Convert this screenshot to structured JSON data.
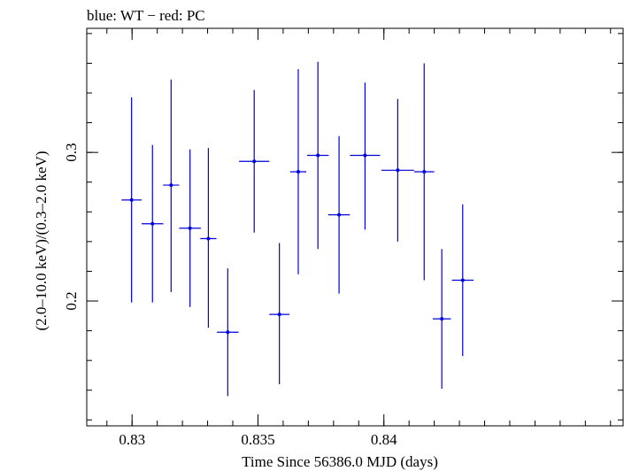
{
  "chart_data": {
    "type": "scatter",
    "title": "blue: WT − red: PC",
    "xlabel": "Time Since 56386.0 MJD (days)",
    "ylabel": "(2.0–10.0 keV)/(0.3–2.0 keV)",
    "xlim": [
      0.8282,
      0.8495
    ],
    "ylim": [
      0.116,
      0.3835
    ],
    "x_ticks": [
      {
        "value": 0.83,
        "label": "0.83"
      },
      {
        "value": 0.835,
        "label": "0.835"
      },
      {
        "value": 0.84,
        "label": "0.84"
      }
    ],
    "y_ticks": [
      {
        "value": 0.2,
        "label": "0.2"
      },
      {
        "value": 0.3,
        "label": "0.3"
      }
    ],
    "x_minor_step": 0.001,
    "y_minor_step": 0.02,
    "grid": false,
    "series": [
      {
        "color": "#0000dd",
        "points": [
          {
            "x": 0.82998,
            "xerr": 0.0004,
            "y": 0.268,
            "ylo": 0.199,
            "yhi": 0.337
          },
          {
            "x": 0.83081,
            "xerr": 0.00043,
            "y": 0.252,
            "ylo": 0.199,
            "yhi": 0.305
          },
          {
            "x": 0.83155,
            "xerr": 0.00032,
            "y": 0.278,
            "ylo": 0.206,
            "yhi": 0.349
          },
          {
            "x": 0.8323,
            "xerr": 0.00043,
            "y": 0.249,
            "ylo": 0.196,
            "yhi": 0.302
          },
          {
            "x": 0.83303,
            "xerr": 0.00032,
            "y": 0.242,
            "ylo": 0.182,
            "yhi": 0.303
          },
          {
            "x": 0.8338,
            "xerr": 0.00043,
            "y": 0.179,
            "ylo": 0.136,
            "yhi": 0.222
          },
          {
            "x": 0.83485,
            "xerr": 0.0006,
            "y": 0.294,
            "ylo": 0.246,
            "yhi": 0.342
          },
          {
            "x": 0.83585,
            "xerr": 0.0004,
            "y": 0.191,
            "ylo": 0.144,
            "yhi": 0.239
          },
          {
            "x": 0.8366,
            "xerr": 0.00032,
            "y": 0.287,
            "ylo": 0.218,
            "yhi": 0.356
          },
          {
            "x": 0.83738,
            "xerr": 0.00043,
            "y": 0.298,
            "ylo": 0.235,
            "yhi": 0.361
          },
          {
            "x": 0.83822,
            "xerr": 0.00043,
            "y": 0.258,
            "ylo": 0.205,
            "yhi": 0.311
          },
          {
            "x": 0.83925,
            "xerr": 0.0006,
            "y": 0.298,
            "ylo": 0.248,
            "yhi": 0.347
          },
          {
            "x": 0.84055,
            "xerr": 0.00065,
            "y": 0.288,
            "ylo": 0.24,
            "yhi": 0.336
          },
          {
            "x": 0.8416,
            "xerr": 0.0004,
            "y": 0.287,
            "ylo": 0.214,
            "yhi": 0.36
          },
          {
            "x": 0.8423,
            "xerr": 0.00036,
            "y": 0.188,
            "ylo": 0.141,
            "yhi": 0.235
          },
          {
            "x": 0.84313,
            "xerr": 0.00043,
            "y": 0.214,
            "ylo": 0.163,
            "yhi": 0.265
          }
        ]
      }
    ]
  }
}
